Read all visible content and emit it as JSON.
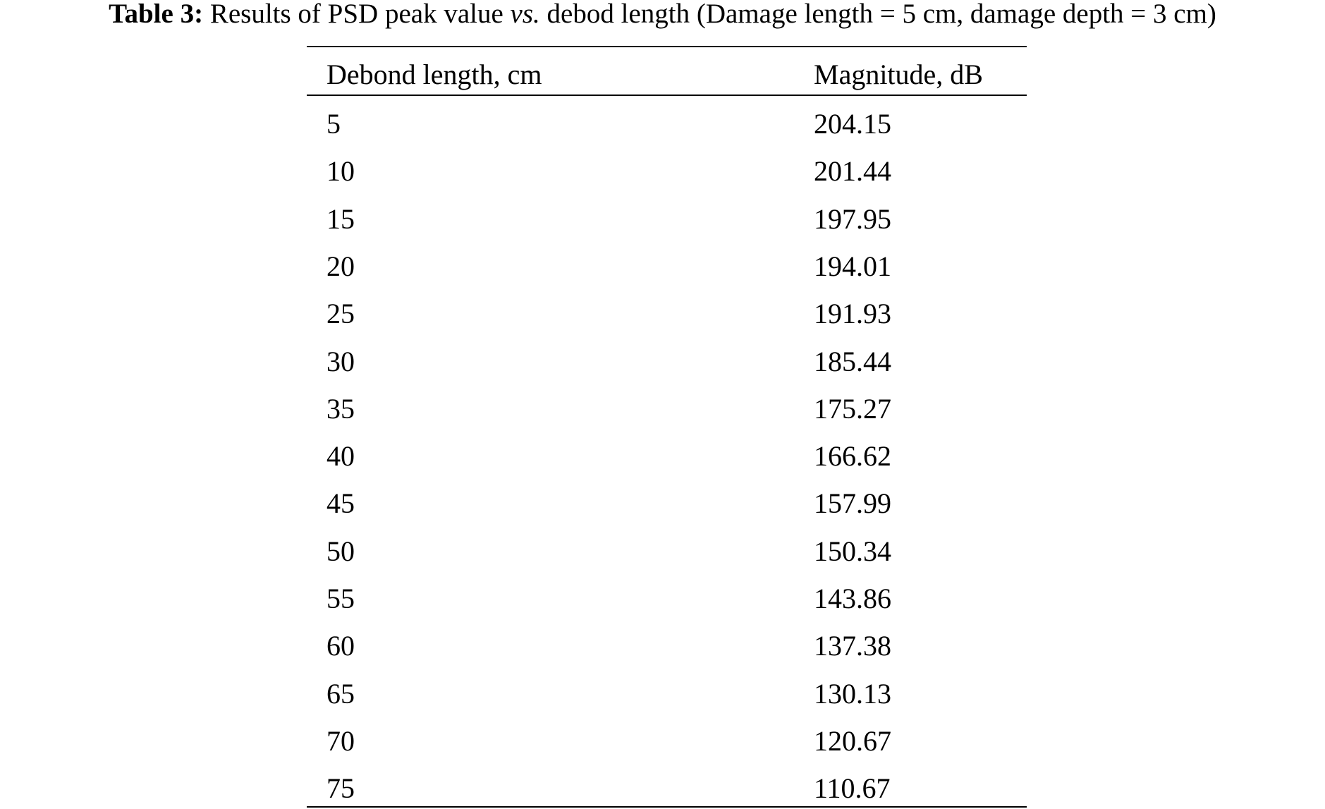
{
  "caption": {
    "label": "Table 3:",
    "text_before": " Results of PSD peak value ",
    "italic": "vs.",
    "text_after": " debod length (Damage length = 5 cm, damage depth = 3 cm)"
  },
  "table": {
    "header": [
      "Debond length, cm",
      "Magnitude, dB"
    ],
    "rows": [
      [
        "5",
        "204.15"
      ],
      [
        "10",
        "201.44"
      ],
      [
        "15",
        "197.95"
      ],
      [
        "20",
        "194.01"
      ],
      [
        "25",
        "191.93"
      ],
      [
        "30",
        "185.44"
      ],
      [
        "35",
        "175.27"
      ],
      [
        "40",
        "166.62"
      ],
      [
        "45",
        "157.99"
      ],
      [
        "50",
        "150.34"
      ],
      [
        "55",
        "143.86"
      ],
      [
        "60",
        "137.38"
      ],
      [
        "65",
        "130.13"
      ],
      [
        "70",
        "120.67"
      ],
      [
        "75",
        "110.67"
      ]
    ]
  }
}
